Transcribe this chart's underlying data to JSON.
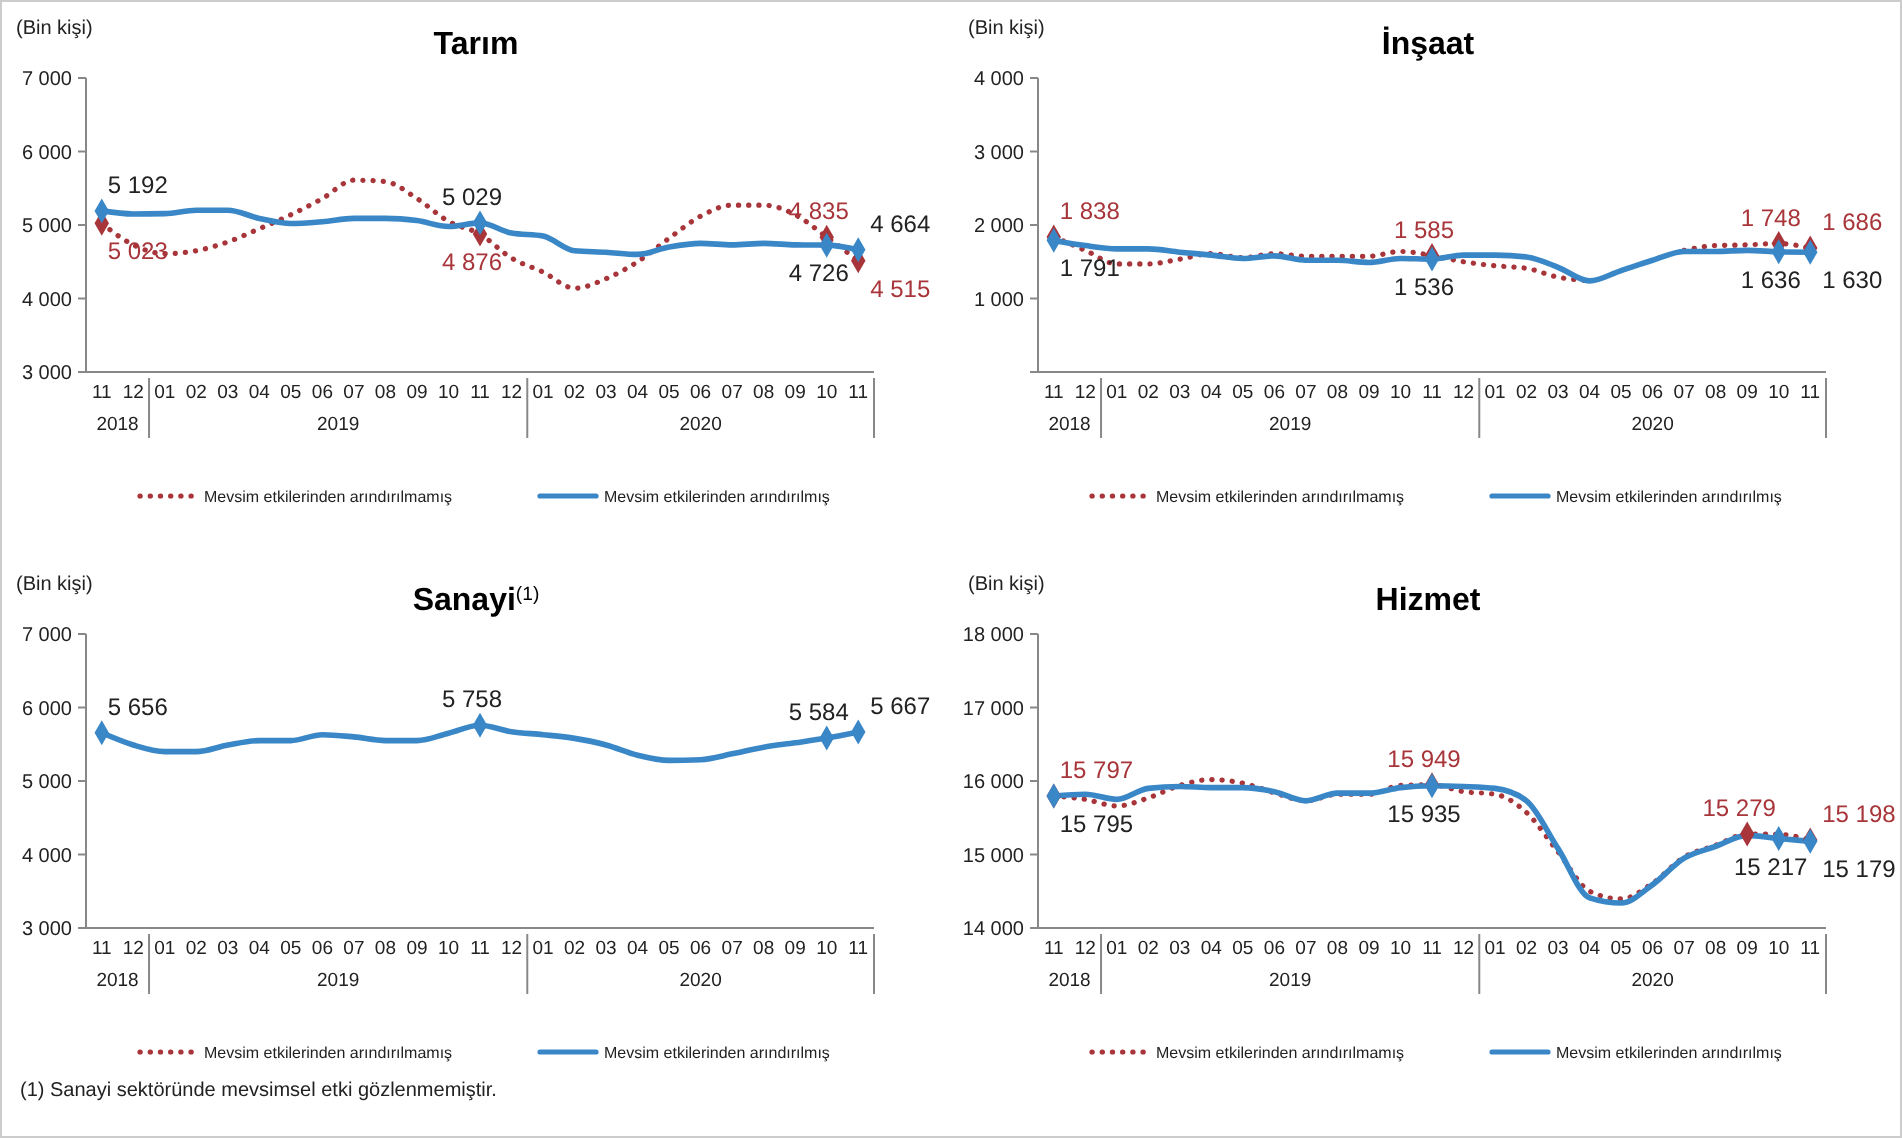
{
  "chart_data": [
    {
      "type": "line",
      "title": "Tarım",
      "ylabel": "(Bin kişi)",
      "categories": [
        "11",
        "12",
        "01",
        "02",
        "03",
        "04",
        "05",
        "06",
        "07",
        "08",
        "09",
        "10",
        "11",
        "12",
        "01",
        "02",
        "03",
        "04",
        "05",
        "06",
        "07",
        "08",
        "09",
        "10",
        "11"
      ],
      "ylim": [
        3000,
        7000
      ],
      "yticks": [
        {
          "value": 3000,
          "label": "3 000"
        },
        {
          "value": 4000,
          "label": "4 000"
        },
        {
          "value": 5000,
          "label": "5 000"
        },
        {
          "value": 6000,
          "label": "6 000"
        },
        {
          "value": 7000,
          "label": "7 000"
        }
      ],
      "legend": "bottom",
      "annotations": [
        "2018",
        "2019",
        "2020"
      ],
      "series": [
        {
          "name": "Mevsim etkilerinden arındırılmamış",
          "color": "#a8353a",
          "line_style": "dotted",
          "values": [
            5023,
            4730,
            4610,
            4650,
            4770,
            4950,
            5140,
            5360,
            5610,
            5590,
            5360,
            5050,
            4876,
            4550,
            4360,
            4140,
            4270,
            4500,
            4820,
            5120,
            5270,
            5270,
            5140,
            4835,
            4515
          ],
          "value_labels": [
            "5 023",
            null,
            null,
            null,
            null,
            null,
            null,
            null,
            null,
            null,
            null,
            null,
            "4 876",
            null,
            null,
            null,
            null,
            null,
            null,
            null,
            null,
            null,
            null,
            "4 835",
            "4 515"
          ]
        },
        {
          "name": "Mevsim etkilerinden arındırılmış",
          "color": "#3a87c8",
          "line_style": "solid",
          "values": [
            5192,
            5150,
            5155,
            5200,
            5200,
            5090,
            5020,
            5045,
            5090,
            5090,
            5060,
            4980,
            5029,
            4890,
            4850,
            4650,
            4630,
            4600,
            4700,
            4750,
            4730,
            4750,
            4730,
            4726,
            4664
          ],
          "value_labels": [
            "5 192",
            null,
            null,
            null,
            null,
            null,
            null,
            null,
            null,
            null,
            null,
            null,
            "5 029",
            null,
            null,
            null,
            null,
            null,
            null,
            null,
            null,
            null,
            null,
            "4 726",
            "4 664"
          ]
        }
      ]
    },
    {
      "type": "line",
      "title": "İnşaat",
      "ylabel": "(Bin kişi)",
      "categories": [
        "11",
        "12",
        "01",
        "02",
        "03",
        "04",
        "05",
        "06",
        "07",
        "08",
        "09",
        "10",
        "11",
        "12",
        "01",
        "02",
        "03",
        "04",
        "05",
        "06",
        "07",
        "08",
        "09",
        "10",
        "11"
      ],
      "ylim": [
        0,
        4000
      ],
      "yticks": [
        {
          "value": 0,
          "label": null
        },
        {
          "value": 1000,
          "label": "1 000"
        },
        {
          "value": 2000,
          "label": "2 000"
        },
        {
          "value": 3000,
          "label": "3 000"
        },
        {
          "value": 4000,
          "label": "4 000"
        }
      ],
      "legend": "bottom",
      "annotations": [
        "2018",
        "2019",
        "2020"
      ],
      "series": [
        {
          "name": "Mevsim etkilerinden arındırılmamış",
          "color": "#a8353a",
          "line_style": "dotted",
          "values": [
            1838,
            1655,
            1470,
            1470,
            1535,
            1610,
            1555,
            1610,
            1575,
            1575,
            1575,
            1640,
            1585,
            1500,
            1445,
            1410,
            1290,
            1240,
            null,
            null,
            1655,
            1720,
            1730,
            1748,
            1686
          ],
          "value_labels": [
            "1 838",
            null,
            null,
            null,
            null,
            null,
            null,
            null,
            null,
            null,
            null,
            null,
            "1 585",
            null,
            null,
            null,
            null,
            null,
            null,
            null,
            null,
            null,
            null,
            "1 748",
            "1 686"
          ]
        },
        {
          "name": "Mevsim etkilerinden arındırılmış",
          "color": "#3a87c8",
          "line_style": "solid",
          "values": [
            1791,
            1720,
            1675,
            1675,
            1630,
            1590,
            1545,
            1580,
            1520,
            1520,
            1490,
            1545,
            1536,
            1590,
            1590,
            1565,
            1425,
            1240,
            1380,
            1520,
            1640,
            1640,
            1655,
            1636,
            1630
          ],
          "value_labels": [
            "1 791",
            null,
            null,
            null,
            null,
            null,
            null,
            null,
            null,
            null,
            null,
            null,
            "1 536",
            null,
            null,
            null,
            null,
            null,
            null,
            null,
            null,
            null,
            null,
            "1 636",
            "1 630"
          ]
        }
      ]
    },
    {
      "type": "line",
      "title": "Sanayi$^{(1)}$",
      "ylabel": "(Bin kişi)",
      "categories": [
        "11",
        "12",
        "01",
        "02",
        "03",
        "04",
        "05",
        "06",
        "07",
        "08",
        "09",
        "10",
        "11",
        "12",
        "01",
        "02",
        "03",
        "04",
        "05",
        "06",
        "07",
        "08",
        "09",
        "10",
        "11"
      ],
      "ylim": [
        3000,
        7000
      ],
      "yticks": [
        {
          "value": 3000,
          "label": "3 000"
        },
        {
          "value": 4000,
          "label": "4 000"
        },
        {
          "value": 5000,
          "label": "5 000"
        },
        {
          "value": 6000,
          "label": "6 000"
        },
        {
          "value": 7000,
          "label": "7 000"
        }
      ],
      "legend": "bottom",
      "annotations": [
        "2018",
        "2019",
        "2020",
        "(1) Sanayi sektöründe mevsimsel etki gözlenmemiştir."
      ],
      "series": [
        {
          "name": "Mevsim etkilerinden arındırılmamış",
          "color": "#a8353a",
          "line_style": "dotted",
          "values": [
            null,
            null,
            null,
            null,
            null,
            null,
            null,
            null,
            null,
            null,
            null,
            null,
            null,
            null,
            null,
            null,
            null,
            null,
            null,
            null,
            null,
            null,
            null,
            null,
            null
          ]
        },
        {
          "name": "Mevsim etkilerinden arındırılmış",
          "color": "#3a87c8",
          "line_style": "solid",
          "values": [
            5656,
            5490,
            5400,
            5400,
            5490,
            5550,
            5550,
            5630,
            5600,
            5550,
            5550,
            5650,
            5758,
            5670,
            5630,
            5580,
            5490,
            5350,
            5280,
            5290,
            5370,
            5460,
            5520,
            5584,
            5667
          ],
          "value_labels": [
            "5 656",
            null,
            null,
            null,
            null,
            null,
            null,
            null,
            null,
            null,
            null,
            null,
            "5 758",
            null,
            null,
            null,
            null,
            null,
            null,
            null,
            null,
            null,
            null,
            "5 584",
            "5 667"
          ]
        }
      ]
    },
    {
      "type": "line",
      "title": "Hizmet",
      "ylabel": "(Bin kişi)",
      "categories": [
        "11",
        "12",
        "01",
        "02",
        "03",
        "04",
        "05",
        "06",
        "07",
        "08",
        "09",
        "10",
        "11",
        "12",
        "01",
        "02",
        "03",
        "04",
        "05",
        "06",
        "07",
        "08",
        "09",
        "10",
        "11"
      ],
      "ylim": [
        14000,
        18000
      ],
      "yticks": [
        {
          "value": 14000,
          "label": "14 000"
        },
        {
          "value": 15000,
          "label": "15 000"
        },
        {
          "value": 16000,
          "label": "16 000"
        },
        {
          "value": 17000,
          "label": "17 000"
        },
        {
          "value": 18000,
          "label": "18 000"
        }
      ],
      "legend": "bottom",
      "annotations": [
        "2018",
        "2019",
        "2020"
      ],
      "series": [
        {
          "name": "Mevsim etkilerinden arındırılmamış",
          "color": "#a8353a",
          "line_style": "dotted",
          "values": [
            15797,
            15750,
            15660,
            15770,
            15940,
            16020,
            15970,
            15840,
            15730,
            15820,
            15820,
            15940,
            15949,
            15855,
            15820,
            15570,
            15035,
            14500,
            14395,
            14610,
            14965,
            15125,
            15279,
            15275,
            15198
          ],
          "value_labels": [
            "15 797",
            null,
            null,
            null,
            null,
            null,
            null,
            null,
            null,
            null,
            null,
            null,
            "15 949",
            null,
            null,
            null,
            null,
            null,
            null,
            null,
            null,
            null,
            "15 279",
            null,
            "15 198"
          ]
        },
        {
          "name": "Mevsim etkilerinden arındırılmış",
          "color": "#3a87c8",
          "line_style": "solid",
          "values": [
            15795,
            15820,
            15750,
            15900,
            15925,
            15910,
            15910,
            15855,
            15730,
            15835,
            15835,
            15910,
            15935,
            15925,
            15900,
            15730,
            15080,
            14410,
            14340,
            14590,
            14950,
            15110,
            15260,
            15217,
            15179
          ],
          "value_labels": [
            "15 795",
            null,
            null,
            null,
            null,
            null,
            null,
            null,
            null,
            null,
            null,
            null,
            "15 935",
            null,
            null,
            null,
            null,
            null,
            null,
            null,
            null,
            null,
            null,
            "15 217",
            "15 179"
          ]
        }
      ]
    }
  ]
}
